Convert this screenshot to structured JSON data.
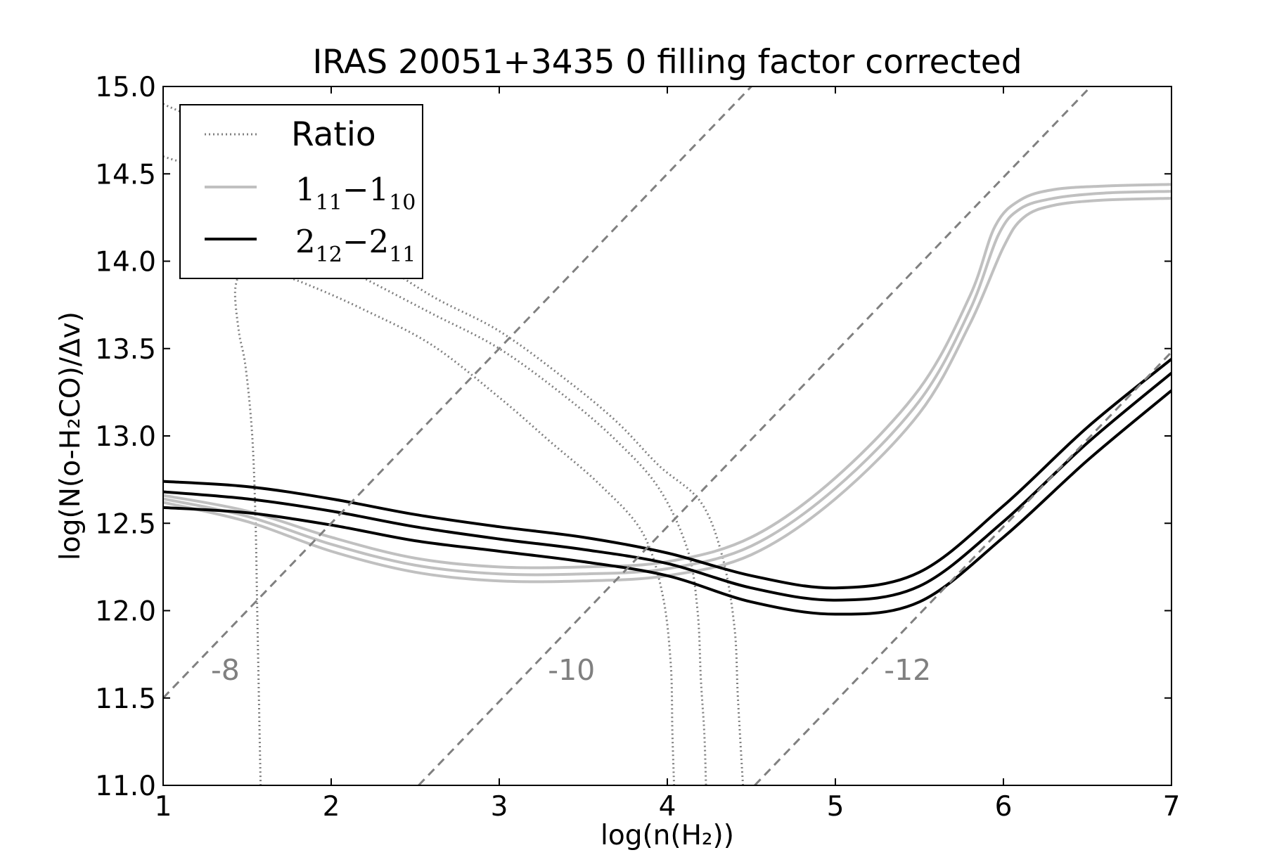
{
  "chart_data": {
    "type": "line",
    "title": "IRAS 20051+3435 0 filling factor corrected",
    "xlabel": "log(n(H₂))",
    "ylabel": "log(N(o-H₂CO)/Δv)",
    "xlim": [
      1,
      7
    ],
    "ylim": [
      11.0,
      15.0
    ],
    "xticks": [
      "1",
      "2",
      "3",
      "4",
      "5",
      "6",
      "7"
    ],
    "yticks": [
      "11.0",
      "11.5",
      "12.0",
      "12.5",
      "13.0",
      "13.5",
      "14.0",
      "14.5",
      "15.0"
    ],
    "grid": false,
    "legend_position": "upper-left",
    "legend": [
      {
        "label": "Ratio",
        "style": "dotted",
        "color": "#808080"
      },
      {
        "label_base": "1",
        "label_sub": "11",
        "label_sep": "−",
        "label_base2": "1",
        "label_sub2": "10",
        "style": "solid",
        "color": "#c0c0c0"
      },
      {
        "label_base": "2",
        "label_sub": "12",
        "label_sep": "−",
        "label_base2": "2",
        "label_sub2": "11",
        "style": "solid",
        "color": "#000000"
      }
    ],
    "annotations": [
      {
        "text": "-8",
        "x": 1.37,
        "y": 11.66
      },
      {
        "text": "-10",
        "x": 3.43,
        "y": 11.66
      },
      {
        "text": "-12",
        "x": 5.43,
        "y": 11.66
      }
    ],
    "series": [
      {
        "group": "ratio",
        "style": "dotted",
        "color": "#808080",
        "points": [
          [
            1.58,
            11.0
          ],
          [
            1.57,
            11.5
          ],
          [
            1.56,
            12.0
          ],
          [
            1.55,
            12.5
          ],
          [
            1.53,
            13.0
          ],
          [
            1.49,
            13.4
          ],
          [
            1.45,
            13.6
          ],
          [
            1.43,
            13.85
          ],
          [
            1.5,
            13.95
          ],
          [
            1.7,
            13.92
          ],
          [
            1.9,
            13.85
          ],
          [
            2.2,
            13.72
          ],
          [
            2.6,
            13.52
          ],
          [
            3.0,
            13.22
          ],
          [
            3.3,
            12.97
          ],
          [
            3.6,
            12.72
          ],
          [
            3.85,
            12.45
          ],
          [
            3.97,
            12.1
          ],
          [
            4.02,
            11.7
          ],
          [
            4.03,
            11.3
          ],
          [
            4.04,
            11.0
          ]
        ]
      },
      {
        "group": "ratio",
        "style": "dotted",
        "color": "#808080",
        "points": [
          [
            1.0,
            14.6
          ],
          [
            1.4,
            14.45
          ],
          [
            1.8,
            14.1
          ],
          [
            2.2,
            13.9
          ],
          [
            2.6,
            13.7
          ],
          [
            3.0,
            13.5
          ],
          [
            3.4,
            13.22
          ],
          [
            3.7,
            12.97
          ],
          [
            3.95,
            12.7
          ],
          [
            4.12,
            12.35
          ],
          [
            4.18,
            12.0
          ],
          [
            4.2,
            11.6
          ],
          [
            4.22,
            11.3
          ],
          [
            4.23,
            11.0
          ]
        ]
      },
      {
        "group": "ratio",
        "style": "dotted",
        "color": "#808080",
        "points": [
          [
            1.0,
            14.9
          ],
          [
            1.4,
            14.7
          ],
          [
            1.8,
            14.3
          ],
          [
            2.2,
            14.05
          ],
          [
            2.6,
            13.8
          ],
          [
            3.0,
            13.6
          ],
          [
            3.4,
            13.32
          ],
          [
            3.7,
            13.08
          ],
          [
            3.95,
            12.83
          ],
          [
            4.2,
            12.62
          ],
          [
            4.33,
            12.3
          ],
          [
            4.4,
            11.9
          ],
          [
            4.42,
            11.5
          ],
          [
            4.45,
            11.0
          ]
        ]
      },
      {
        "group": "1_11-1_10",
        "style": "solid",
        "color": "#c0c0c0",
        "points": [
          [
            1.0,
            12.66
          ],
          [
            1.5,
            12.57
          ],
          [
            2.0,
            12.42
          ],
          [
            2.5,
            12.3
          ],
          [
            3.0,
            12.25
          ],
          [
            3.5,
            12.25
          ],
          [
            4.0,
            12.28
          ],
          [
            4.5,
            12.42
          ],
          [
            5.0,
            12.76
          ],
          [
            5.5,
            13.27
          ],
          [
            5.8,
            13.8
          ],
          [
            5.95,
            14.2
          ],
          [
            6.1,
            14.35
          ],
          [
            6.3,
            14.41
          ],
          [
            6.6,
            14.43
          ],
          [
            7.0,
            14.44
          ]
        ]
      },
      {
        "group": "1_11-1_10",
        "style": "solid",
        "color": "#c0c0c0",
        "points": [
          [
            1.0,
            12.64
          ],
          [
            1.5,
            12.54
          ],
          [
            2.0,
            12.38
          ],
          [
            2.5,
            12.26
          ],
          [
            3.0,
            12.21
          ],
          [
            3.5,
            12.21
          ],
          [
            4.0,
            12.24
          ],
          [
            4.5,
            12.37
          ],
          [
            5.0,
            12.7
          ],
          [
            5.5,
            13.2
          ],
          [
            5.8,
            13.72
          ],
          [
            5.97,
            14.15
          ],
          [
            6.1,
            14.3
          ],
          [
            6.3,
            14.36
          ],
          [
            6.6,
            14.39
          ],
          [
            7.0,
            14.4
          ]
        ]
      },
      {
        "group": "1_11-1_10",
        "style": "solid",
        "color": "#c0c0c0",
        "points": [
          [
            1.0,
            12.62
          ],
          [
            1.5,
            12.51
          ],
          [
            2.0,
            12.34
          ],
          [
            2.5,
            12.22
          ],
          [
            3.0,
            12.17
          ],
          [
            3.5,
            12.17
          ],
          [
            4.0,
            12.2
          ],
          [
            4.5,
            12.32
          ],
          [
            5.0,
            12.64
          ],
          [
            5.5,
            13.13
          ],
          [
            5.8,
            13.64
          ],
          [
            6.0,
            14.08
          ],
          [
            6.12,
            14.25
          ],
          [
            6.3,
            14.32
          ],
          [
            6.6,
            14.35
          ],
          [
            7.0,
            14.36
          ]
        ]
      },
      {
        "group": "2_12-2_11",
        "style": "solid",
        "color": "#000000",
        "points": [
          [
            1.0,
            12.74
          ],
          [
            1.5,
            12.71
          ],
          [
            2.0,
            12.64
          ],
          [
            2.5,
            12.55
          ],
          [
            3.0,
            12.48
          ],
          [
            3.5,
            12.42
          ],
          [
            4.0,
            12.33
          ],
          [
            4.5,
            12.2
          ],
          [
            5.0,
            12.13
          ],
          [
            5.5,
            12.22
          ],
          [
            6.0,
            12.6
          ],
          [
            6.5,
            13.05
          ],
          [
            7.0,
            13.44
          ]
        ]
      },
      {
        "group": "2_12-2_11",
        "style": "solid",
        "color": "#000000",
        "points": [
          [
            1.0,
            12.68
          ],
          [
            1.5,
            12.64
          ],
          [
            2.0,
            12.57
          ],
          [
            2.5,
            12.48
          ],
          [
            3.0,
            12.41
          ],
          [
            3.5,
            12.35
          ],
          [
            4.0,
            12.27
          ],
          [
            4.5,
            12.13
          ],
          [
            5.0,
            12.06
          ],
          [
            5.5,
            12.14
          ],
          [
            6.0,
            12.51
          ],
          [
            6.5,
            12.96
          ],
          [
            7.0,
            13.36
          ]
        ]
      },
      {
        "group": "2_12-2_11",
        "style": "solid",
        "color": "#000000",
        "points": [
          [
            1.0,
            12.59
          ],
          [
            1.5,
            12.56
          ],
          [
            2.0,
            12.49
          ],
          [
            2.5,
            12.4
          ],
          [
            3.0,
            12.34
          ],
          [
            3.5,
            12.28
          ],
          [
            4.0,
            12.2
          ],
          [
            4.5,
            12.05
          ],
          [
            5.0,
            11.98
          ],
          [
            5.5,
            12.05
          ],
          [
            6.0,
            12.42
          ],
          [
            6.5,
            12.86
          ],
          [
            7.0,
            13.26
          ]
        ]
      },
      {
        "group": "abundance",
        "style": "dashed",
        "color": "#808080",
        "label": "-8",
        "points": [
          [
            1.0,
            11.5
          ],
          [
            4.5,
            15.0
          ]
        ]
      },
      {
        "group": "abundance",
        "style": "dashed",
        "color": "#808080",
        "label": "-10",
        "points": [
          [
            2.52,
            11.0
          ],
          [
            6.52,
            15.0
          ]
        ]
      },
      {
        "group": "abundance",
        "style": "dashed",
        "color": "#808080",
        "label": "-12",
        "points": [
          [
            4.52,
            11.0
          ],
          [
            7.0,
            13.48
          ]
        ]
      }
    ]
  }
}
